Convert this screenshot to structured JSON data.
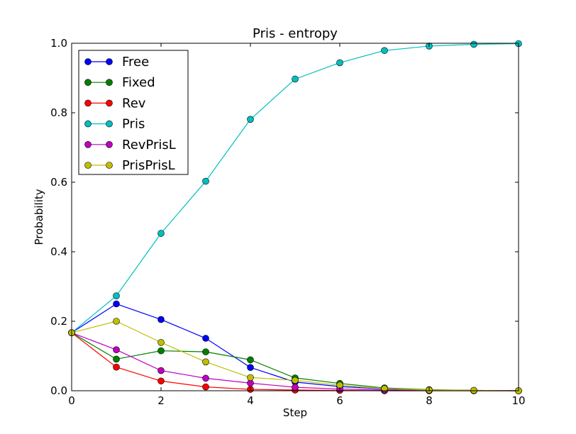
{
  "chart_data": {
    "type": "line",
    "title": "Pris - entropy",
    "xlabel": "Step",
    "ylabel": "Probability",
    "xlim": [
      0,
      10
    ],
    "ylim": [
      0.0,
      1.0
    ],
    "xticks": [
      0,
      2,
      4,
      6,
      8,
      10
    ],
    "xtick_labels": [
      "0",
      "2",
      "4",
      "6",
      "8",
      "10"
    ],
    "yticks": [
      0.0,
      0.2,
      0.4,
      0.6,
      0.8,
      1.0
    ],
    "ytick_labels": [
      "0.0",
      "0.2",
      "0.4",
      "0.6",
      "0.8",
      "1.0"
    ],
    "grid": false,
    "legend_position": "top-left",
    "x": [
      0,
      1,
      2,
      3,
      4,
      5,
      6,
      7,
      8,
      9,
      10
    ],
    "series": [
      {
        "name": "Free",
        "color": "#0000ff",
        "values": [
          0.167,
          0.25,
          0.205,
          0.151,
          0.067,
          0.025,
          0.012,
          0.005,
          0.002,
          0.001,
          0.0
        ]
      },
      {
        "name": "Fixed",
        "color": "#008000",
        "values": [
          0.167,
          0.091,
          0.115,
          0.112,
          0.089,
          0.037,
          0.021,
          0.008,
          0.003,
          0.001,
          0.0
        ]
      },
      {
        "name": "Rev",
        "color": "#ff0000",
        "values": [
          0.167,
          0.068,
          0.028,
          0.011,
          0.004,
          0.002,
          0.001,
          0.0,
          0.0,
          0.0,
          0.0
        ]
      },
      {
        "name": "Pris",
        "color": "#00bfbf",
        "values": [
          0.167,
          0.273,
          0.453,
          0.603,
          0.781,
          0.897,
          0.944,
          0.979,
          0.992,
          0.997,
          0.999
        ]
      },
      {
        "name": "RevPrisL",
        "color": "#bf00bf",
        "values": [
          0.167,
          0.118,
          0.058,
          0.036,
          0.022,
          0.01,
          0.005,
          0.002,
          0.001,
          0.0,
          0.0
        ]
      },
      {
        "name": "PrisPrisL",
        "color": "#bfbf00",
        "values": [
          0.167,
          0.2,
          0.139,
          0.083,
          0.038,
          0.03,
          0.016,
          0.006,
          0.002,
          0.001,
          0.0
        ]
      }
    ]
  }
}
